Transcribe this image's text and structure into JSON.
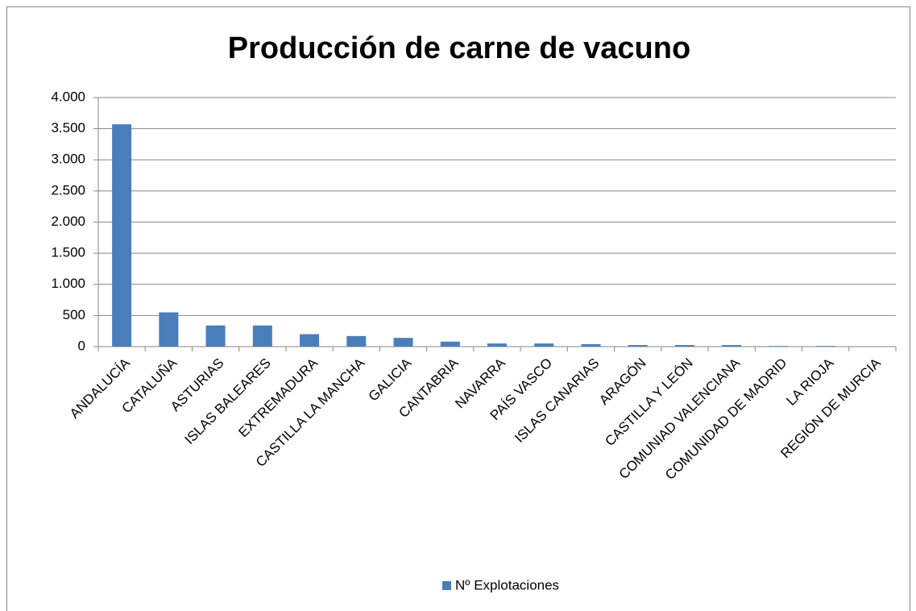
{
  "chart_data": {
    "type": "bar",
    "title": "Producción de carne de vacuno",
    "categories": [
      "ANDALUCÍA",
      "CATALUÑA",
      "ASTURIAS",
      "ISLAS BALEARES",
      "EXTREMADURA",
      "CASTILLA LA MANCHA",
      "GALICIA",
      "CANTABRIA",
      "NAVARRA",
      "PAÍS VASCO",
      "ISLAS CANARIAS",
      "ARAGÓN",
      "CASTILLA Y LEÓN",
      "COMUNIAD VALENCIANA",
      "COMUNIDAD DE MADRID",
      "LA RIOJA",
      "REGIÓN DE MURCIA"
    ],
    "series": [
      {
        "name": "Nº Explotaciones",
        "color": "#4a7ebb",
        "values": [
          3570,
          550,
          340,
          340,
          200,
          170,
          140,
          80,
          50,
          50,
          40,
          25,
          25,
          25,
          10,
          10,
          0
        ]
      }
    ],
    "ylim": [
      0,
      4000
    ],
    "yticks": [
      0,
      500,
      {
        "value": 1000,
        "label": "1.000"
      },
      {
        "value": 1500,
        "label": "1.500"
      },
      {
        "value": 2000,
        "label": "2.000"
      },
      {
        "value": 2500,
        "label": "2.500"
      },
      {
        "value": 3000,
        "label": "3.000"
      },
      {
        "value": 3500,
        "label": "3.500"
      },
      {
        "value": 4000,
        "label": "4.000"
      }
    ],
    "grid": true,
    "legend": "bottom"
  }
}
